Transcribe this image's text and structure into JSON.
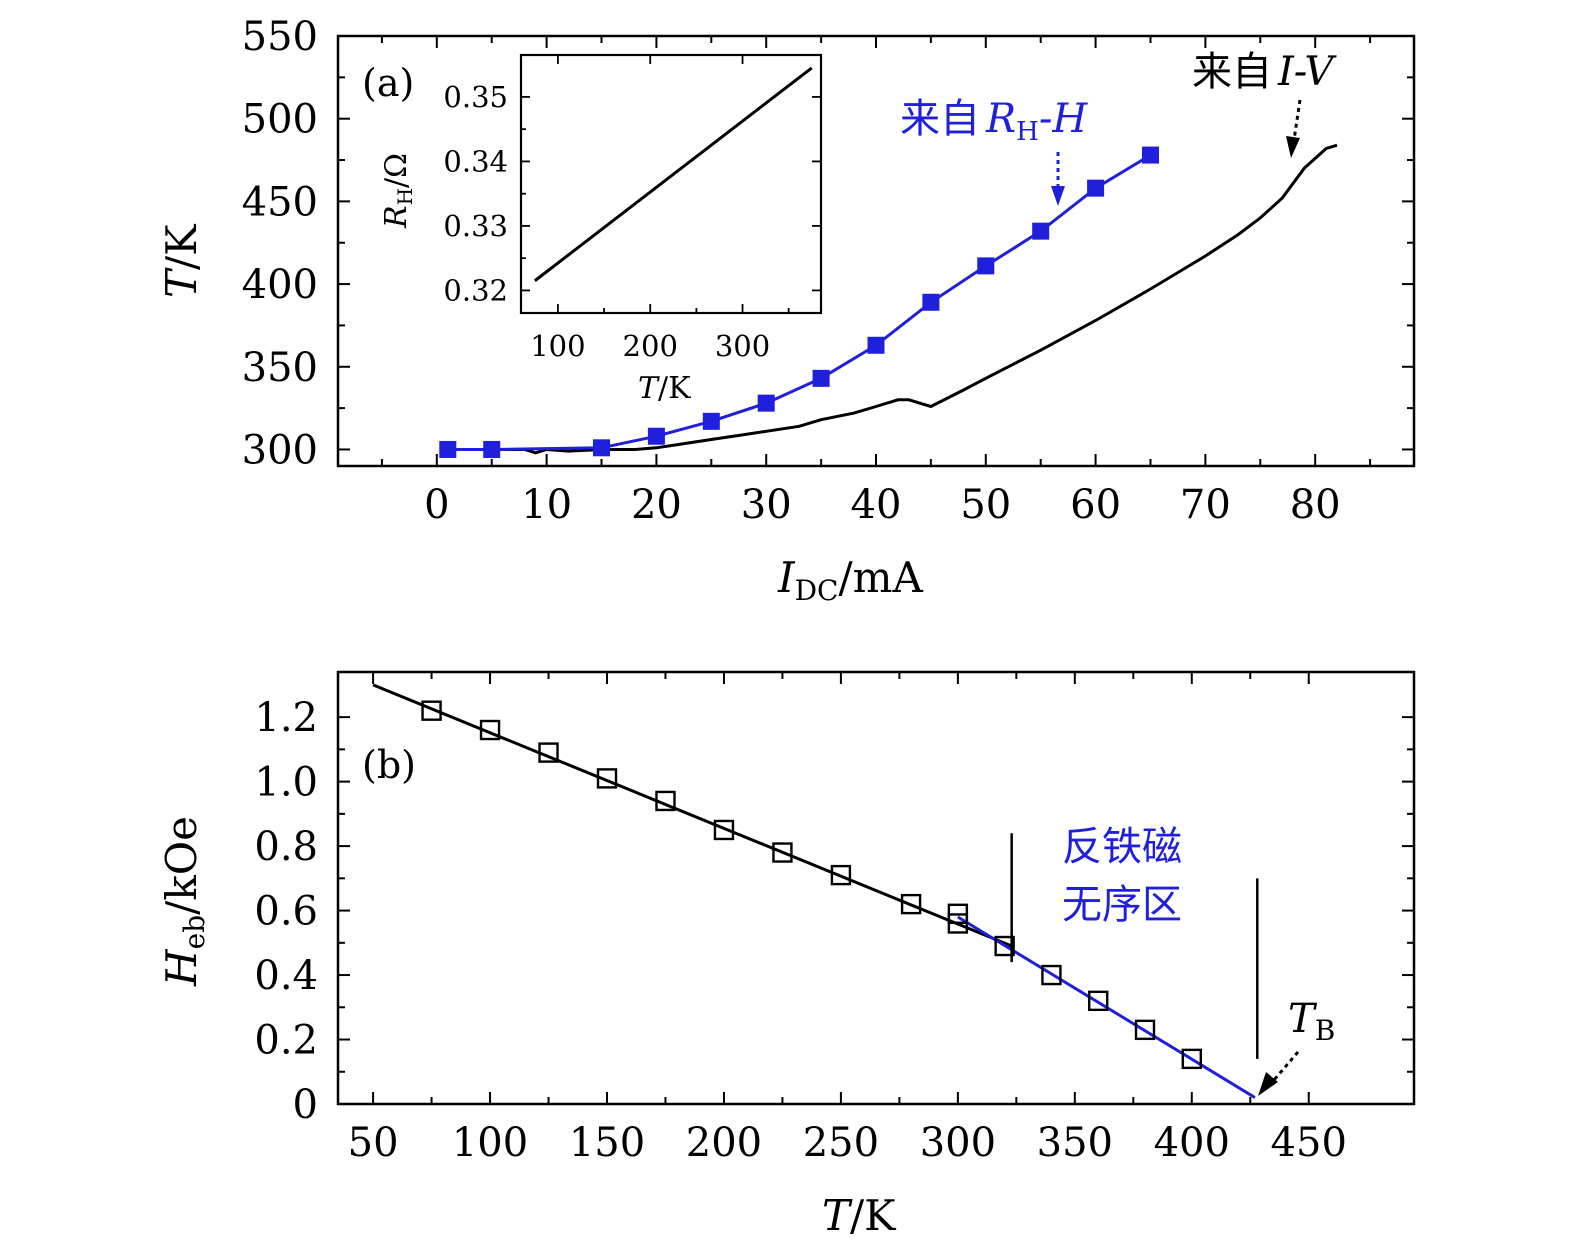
{
  "chart_data": [
    {
      "type": "line",
      "panel_label": "(a)",
      "xlabel_main": "I",
      "xlabel_sub": "DC",
      "xlabel_unit": "/mA",
      "ylabel_main": "T",
      "ylabel_unit": "/K",
      "xlim": [
        -9,
        89
      ],
      "ylim": [
        290,
        550
      ],
      "xticks": [
        0,
        10,
        20,
        30,
        40,
        50,
        60,
        70,
        80
      ],
      "yticks": [
        300,
        350,
        400,
        450,
        500,
        550
      ],
      "series": [
        {
          "color": "#1f1fdc",
          "marker": "filled-square",
          "x": [
            1,
            5,
            15,
            20,
            25,
            30,
            35,
            40,
            45,
            50,
            55,
            60,
            65
          ],
          "y": [
            300,
            300,
            301,
            308,
            317,
            328,
            343,
            363,
            389,
            411,
            432,
            458,
            478
          ]
        },
        {
          "color": "#000000",
          "marker": "none",
          "x": [
            1,
            5,
            8,
            9,
            10,
            12,
            15,
            18,
            20,
            22,
            25,
            28,
            30,
            33,
            35,
            38,
            40,
            42,
            43,
            44,
            45,
            48,
            50,
            55,
            60,
            65,
            70,
            73,
            75,
            77,
            79,
            81,
            82
          ],
          "y": [
            300,
            300,
            300,
            298,
            300,
            299,
            300,
            300,
            301,
            303,
            306,
            309,
            311,
            314,
            318,
            322,
            326,
            330,
            330,
            328,
            326,
            336,
            343,
            360,
            378,
            397,
            417,
            430,
            440,
            452,
            470,
            482,
            484
          ]
        }
      ],
      "annotations": {
        "blue_prefix": "来自",
        "blue_R": "R",
        "blue_R_sub": "H",
        "blue_rest": "-H",
        "black_prefix": "来自",
        "black_IV": "I-V"
      },
      "inset": {
        "type": "line",
        "xlabel_main": "T",
        "xlabel_unit": "/K",
        "ylabel_main": "R",
        "ylabel_sub": "H",
        "ylabel_unit": "/Ω",
        "xlim": [
          60,
          385
        ],
        "ylim": [
          0.3165,
          0.3565
        ],
        "xticks": [
          100,
          200,
          300
        ],
        "ytick_values": [
          0.32,
          0.33,
          0.34,
          0.35
        ],
        "ytick_labels": [
          "0.32",
          "0.33",
          "0.34",
          "0.35"
        ],
        "x": [
          75,
          375
        ],
        "y": [
          0.3215,
          0.3545
        ],
        "color": "#000000"
      }
    },
    {
      "type": "scatter",
      "panel_label": "(b)",
      "xlabel_main": "T",
      "xlabel_unit": "/K",
      "ylabel_main": "H",
      "ylabel_sub": "eb",
      "ylabel_unit": "/kOe",
      "xlim": [
        35,
        495
      ],
      "ylim": [
        0,
        1.34
      ],
      "xticks": [
        50,
        100,
        150,
        200,
        250,
        300,
        350,
        400,
        450
      ],
      "ytick_values": [
        0,
        0.2,
        0.4,
        0.6,
        0.8,
        1.0,
        1.2
      ],
      "ytick_labels": [
        "0",
        "0.2",
        "0.4",
        "0.6",
        "0.8",
        "1.0",
        "1.2"
      ],
      "points": {
        "marker": "open-square",
        "x": [
          75,
          100,
          125,
          150,
          175,
          200,
          225,
          250,
          280,
          300,
          300,
          320,
          340,
          360,
          380,
          400
        ],
        "y": [
          1.22,
          1.16,
          1.09,
          1.01,
          0.94,
          0.85,
          0.78,
          0.71,
          0.62,
          0.59,
          0.56,
          0.49,
          0.4,
          0.32,
          0.23,
          0.14
        ]
      },
      "fit_lines": [
        {
          "color": "#000000",
          "x": [
            50,
            323
          ],
          "y": [
            1.3,
            0.49
          ]
        },
        {
          "color": "#1f1fdc",
          "x": [
            300,
            427
          ],
          "y": [
            0.58,
            0.02
          ]
        }
      ],
      "markers_vertical": [
        {
          "x": 323,
          "y_from": 0.84,
          "y_to": 0.44
        },
        {
          "x": 428,
          "y_from": 0.7,
          "y_to": 0.14
        }
      ],
      "annotations": {
        "region_line1": "反铁磁",
        "region_line2": "无序区",
        "tb_main": "T",
        "tb_sub": "B"
      }
    }
  ]
}
